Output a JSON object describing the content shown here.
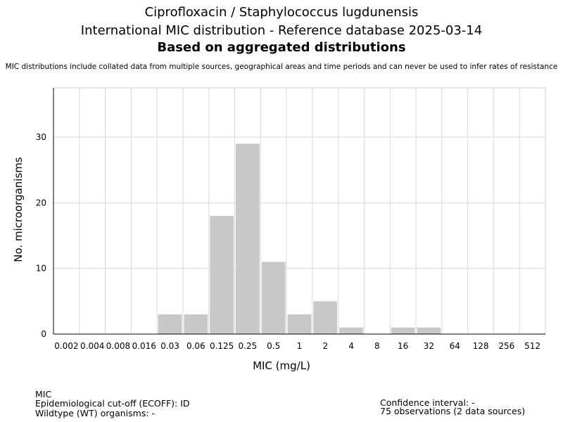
{
  "header": {
    "title_line1": "Ciprofloxacin / Staphylococcus lugdunensis",
    "title_line2": "International MIC distribution - Reference database 2025-03-14",
    "title_line3": "Based on aggregated distributions",
    "note": "MIC distributions include collated data from multiple sources, geographical areas and time periods and can never be used to infer rates of resistance"
  },
  "chart_data": {
    "type": "bar",
    "categories": [
      "0.002",
      "0.004",
      "0.008",
      "0.016",
      "0.03",
      "0.06",
      "0.125",
      "0.25",
      "0.5",
      "1",
      "2",
      "4",
      "8",
      "16",
      "32",
      "64",
      "128",
      "256",
      "512"
    ],
    "values": [
      0,
      0,
      0,
      0,
      3,
      3,
      18,
      29,
      11,
      3,
      5,
      1,
      0,
      1,
      1,
      0,
      0,
      0,
      0
    ],
    "xlabel": "MIC (mg/L)",
    "ylabel": "No. microorganisms",
    "ylim": [
      0,
      37.5
    ],
    "yticks": [
      0,
      10,
      20,
      30
    ],
    "grid": true,
    "bar_color": "#c8c8c8"
  },
  "footer": {
    "mic_label": "MIC",
    "ecoff": "Epidemiological cut-off (ECOFF): ID",
    "wildtype": "Wildtype (WT) organisms:  -",
    "confidence": "Confidence interval: -",
    "observations": "75 observations (2 data sources)"
  }
}
